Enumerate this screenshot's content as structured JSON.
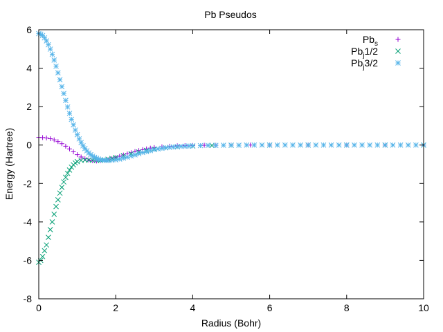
{
  "chart_data": {
    "type": "scatter",
    "title": "Pb Pseudos",
    "xlabel": "Radius (Bohr)",
    "ylabel": "Energy (Hartree)",
    "xlim": [
      0,
      10
    ],
    "ylim": [
      -8,
      6
    ],
    "xticks": [
      0,
      2,
      4,
      6,
      8,
      10
    ],
    "yticks": [
      -8,
      -6,
      -4,
      -2,
      0,
      2,
      4,
      6
    ],
    "xtick_labels": [
      "0",
      "2",
      "4",
      "6",
      "8",
      "10"
    ],
    "ytick_labels": [
      "-8",
      "-6",
      "-4",
      "-2",
      "0",
      "2",
      "4",
      "6"
    ],
    "grid": false,
    "legend_position": "top-right",
    "series": [
      {
        "name_main": "Pb",
        "name_sub": "s",
        "marker": "plus",
        "color": "#9400d3",
        "x": [
          0.0,
          0.1,
          0.2,
          0.3,
          0.4,
          0.5,
          0.6,
          0.7,
          0.8,
          0.9,
          1.0,
          1.1,
          1.2,
          1.3,
          1.4,
          1.5,
          1.6,
          1.7,
          1.8,
          1.9,
          2.0,
          2.1,
          2.2,
          2.3,
          2.4,
          2.5,
          2.6,
          2.7,
          2.8,
          2.9,
          3.0,
          3.2,
          3.4,
          3.6,
          3.8,
          4.0,
          4.3,
          4.6,
          5.0,
          5.5,
          6.0,
          7.0,
          8.0,
          9.0,
          10.0
        ],
        "y": [
          0.4,
          0.39,
          0.37,
          0.33,
          0.27,
          0.18,
          0.07,
          -0.06,
          -0.2,
          -0.35,
          -0.5,
          -0.62,
          -0.71,
          -0.78,
          -0.82,
          -0.83,
          -0.82,
          -0.8,
          -0.76,
          -0.71,
          -0.65,
          -0.59,
          -0.52,
          -0.46,
          -0.4,
          -0.34,
          -0.29,
          -0.24,
          -0.2,
          -0.16,
          -0.13,
          -0.09,
          -0.06,
          -0.04,
          -0.03,
          -0.02,
          -0.01,
          -0.01,
          0.0,
          0.0,
          0.0,
          0.0,
          0.0,
          0.0,
          0.0
        ]
      },
      {
        "name_main": "Pb",
        "name_sub": "j",
        "name_suffix": "1/2",
        "marker": "cross",
        "color": "#009e73",
        "x": [
          0.0,
          0.05,
          0.1,
          0.15,
          0.2,
          0.25,
          0.3,
          0.35,
          0.4,
          0.45,
          0.5,
          0.55,
          0.6,
          0.65,
          0.7,
          0.75,
          0.8,
          0.85,
          0.9,
          0.95,
          1.0,
          1.1,
          1.2,
          1.3,
          1.4,
          1.5,
          1.6,
          1.7,
          1.8,
          1.9,
          2.0,
          2.2,
          2.4,
          2.6,
          2.8,
          3.0,
          3.3,
          3.6,
          4.0,
          4.5,
          5.0,
          6.0,
          7.0,
          8.0,
          9.0,
          10.0
        ],
        "y": [
          -6.1,
          -6.0,
          -5.8,
          -5.5,
          -5.2,
          -4.8,
          -4.4,
          -4.0,
          -3.6,
          -3.2,
          -2.85,
          -2.5,
          -2.2,
          -1.92,
          -1.68,
          -1.47,
          -1.3,
          -1.15,
          -1.03,
          -0.93,
          -0.86,
          -0.8,
          -0.78,
          -0.78,
          -0.79,
          -0.8,
          -0.8,
          -0.78,
          -0.74,
          -0.7,
          -0.65,
          -0.55,
          -0.45,
          -0.36,
          -0.28,
          -0.21,
          -0.14,
          -0.09,
          -0.05,
          -0.02,
          -0.01,
          0.0,
          0.0,
          0.0,
          0.0,
          0.0
        ]
      },
      {
        "name_main": "Pb",
        "name_sub": "j",
        "name_suffix": "3/2",
        "marker": "star",
        "color": "#56b4e9",
        "x": [
          0.0,
          0.05,
          0.1,
          0.15,
          0.2,
          0.25,
          0.3,
          0.35,
          0.4,
          0.45,
          0.5,
          0.55,
          0.6,
          0.65,
          0.7,
          0.75,
          0.8,
          0.85,
          0.9,
          0.95,
          1.0,
          1.05,
          1.1,
          1.15,
          1.2,
          1.25,
          1.3,
          1.35,
          1.4,
          1.45,
          1.5,
          1.55,
          1.6,
          1.65,
          1.7,
          1.75,
          1.8,
          1.9,
          2.0,
          2.1,
          2.2,
          2.3,
          2.4,
          2.5,
          2.6,
          2.7,
          2.8,
          2.9,
          3.0,
          3.1,
          3.2,
          3.3,
          3.4,
          3.5,
          3.6,
          3.7,
          3.8,
          3.9,
          4.0,
          4.2,
          4.4,
          4.6,
          4.8,
          5.0,
          5.2,
          5.4,
          5.6,
          5.8,
          6.0,
          6.2,
          6.4,
          6.6,
          6.8,
          7.0,
          7.2,
          7.4,
          7.6,
          7.8,
          8.0,
          8.2,
          8.4,
          8.6,
          8.8,
          9.0,
          9.2,
          9.4,
          9.6,
          9.8,
          10.0
        ],
        "y": [
          5.8,
          5.77,
          5.7,
          5.58,
          5.42,
          5.22,
          4.99,
          4.72,
          4.42,
          4.1,
          3.76,
          3.4,
          3.04,
          2.68,
          2.32,
          1.98,
          1.65,
          1.34,
          1.05,
          0.78,
          0.54,
          0.32,
          0.13,
          -0.04,
          -0.18,
          -0.3,
          -0.41,
          -0.5,
          -0.58,
          -0.64,
          -0.69,
          -0.73,
          -0.76,
          -0.78,
          -0.79,
          -0.8,
          -0.8,
          -0.79,
          -0.77,
          -0.73,
          -0.68,
          -0.63,
          -0.57,
          -0.51,
          -0.45,
          -0.39,
          -0.34,
          -0.29,
          -0.24,
          -0.2,
          -0.17,
          -0.14,
          -0.12,
          -0.1,
          -0.08,
          -0.07,
          -0.06,
          -0.05,
          -0.04,
          -0.03,
          -0.02,
          -0.02,
          -0.01,
          -0.01,
          -0.01,
          0.0,
          0.0,
          0.0,
          0.0,
          0.0,
          0.0,
          0.0,
          0.0,
          0.0,
          0.0,
          0.0,
          0.0,
          0.0,
          0.0,
          0.0,
          0.0,
          0.0,
          0.0,
          0.0,
          0.0,
          0.0,
          0.0,
          0.0,
          0.0
        ]
      }
    ]
  }
}
